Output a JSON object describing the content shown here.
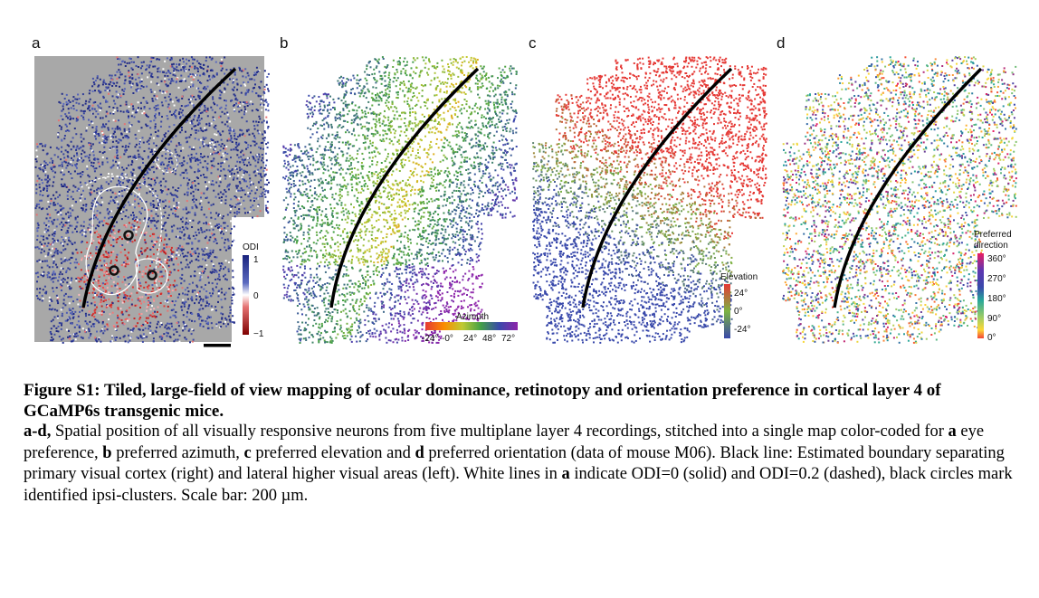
{
  "panels": {
    "a": {
      "letter": "a"
    },
    "b": {
      "letter": "b"
    },
    "c": {
      "letter": "c"
    },
    "d": {
      "letter": "d"
    }
  },
  "legend_a": {
    "title": "ODI",
    "tick_top": "1",
    "tick_mid": "0",
    "tick_bottom": "−1",
    "colors": [
      "#1a237e",
      "#3949ab",
      "#ffffff",
      "#c62828",
      "#7f0000"
    ]
  },
  "legend_b": {
    "title": "Azimuth",
    "ticks": [
      "-24°",
      "-0°",
      "24°",
      "48°",
      "72°"
    ],
    "colors": [
      "#e53935",
      "#fb8c00",
      "#c0ca33",
      "#43a047",
      "#3949ab",
      "#8e24aa"
    ]
  },
  "legend_c": {
    "title": "Elevation",
    "ticks": [
      "24°",
      "0°",
      "-24°"
    ],
    "colors": [
      "#e53935",
      "#7cb342",
      "#3949ab"
    ]
  },
  "legend_d": {
    "title_line1": "Preferred",
    "title_line2": "direction",
    "ticks": [
      "360°",
      "270°",
      "180°",
      "90°",
      "0°"
    ],
    "colors": [
      "#e91e63",
      "#3949ab",
      "#26a69a",
      "#9ccc65",
      "#fdd835",
      "#f44336"
    ]
  },
  "caption": {
    "title": "Figure S1: Tiled, large-field of view mapping of ocular dominance, retinotopy and orientation preference in cortical layer 4 of GCaMP6s transgenic mice.",
    "lead": "a-d,",
    "text1": " Spatial position of all visually responsive neurons from five multiplane layer 4 recordings, stitched into a single map color-coded for ",
    "bold_a": "a",
    "text2": " eye preference, ",
    "bold_b": "b",
    "text3": " preferred azimuth, ",
    "bold_c": "c",
    "text4": " preferred elevation and ",
    "bold_d": "d",
    "text5": " preferred orientation (data of mouse M06). Black line: Estimated boundary separating primary visual cortex (right) and lateral higher visual areas (left). White lines in ",
    "bold_a2": "a",
    "text6": " indicate ODI=0 (solid) and ODI=0.2 (dashed), black circles mark identified ipsi-clusters. Scale bar: 200 µm."
  }
}
